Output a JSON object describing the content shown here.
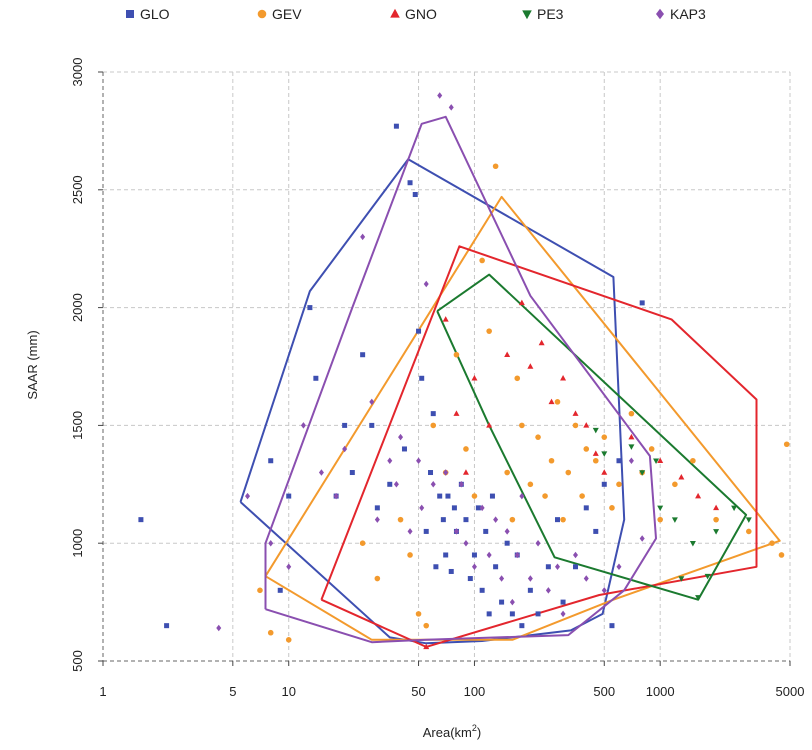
{
  "chart_data": {
    "type": "scatter",
    "title": "",
    "xlabel": "Area(km",
    "xlabel_sup": "2",
    "xlabel_close": ")",
    "ylabel": "SAAR (mm)",
    "xscale": "log",
    "xlim": [
      1,
      5000
    ],
    "ylim": [
      500,
      3000
    ],
    "x_ticks": [
      1,
      5,
      10,
      50,
      100,
      500,
      1000,
      5000
    ],
    "x_tick_labels": [
      "1",
      "5",
      "10",
      "50",
      "100",
      "500",
      "1000",
      "5000"
    ],
    "y_ticks": [
      500,
      1000,
      1500,
      2000,
      2500,
      3000
    ],
    "y_tick_labels": [
      "500",
      "1000",
      "1500",
      "2000",
      "2500",
      "3000"
    ],
    "grid": true,
    "legend_position": "top",
    "series": [
      {
        "name": "GLO",
        "color": "#3e4fb1",
        "marker": "square",
        "points": [
          [
            1.6,
            1100
          ],
          [
            2.2,
            650
          ],
          [
            8,
            1350
          ],
          [
            9,
            800
          ],
          [
            10,
            1200
          ],
          [
            13,
            2000
          ],
          [
            14,
            1700
          ],
          [
            18,
            1200
          ],
          [
            20,
            1500
          ],
          [
            22,
            1300
          ],
          [
            25,
            1800
          ],
          [
            28,
            1500
          ],
          [
            30,
            1150
          ],
          [
            35,
            1250
          ],
          [
            38,
            2770
          ],
          [
            42,
            1400
          ],
          [
            45,
            2530
          ],
          [
            48,
            2480
          ],
          [
            50,
            1900
          ],
          [
            52,
            1700
          ],
          [
            55,
            1050
          ],
          [
            58,
            1300
          ],
          [
            60,
            1550
          ],
          [
            62,
            900
          ],
          [
            65,
            1200
          ],
          [
            68,
            1100
          ],
          [
            70,
            950
          ],
          [
            72,
            1200
          ],
          [
            75,
            880
          ],
          [
            78,
            1150
          ],
          [
            80,
            1050
          ],
          [
            85,
            1250
          ],
          [
            90,
            1100
          ],
          [
            95,
            850
          ],
          [
            100,
            950
          ],
          [
            105,
            1150
          ],
          [
            110,
            800
          ],
          [
            115,
            1050
          ],
          [
            120,
            700
          ],
          [
            125,
            1200
          ],
          [
            130,
            900
          ],
          [
            140,
            750
          ],
          [
            150,
            1000
          ],
          [
            160,
            700
          ],
          [
            170,
            950
          ],
          [
            180,
            650
          ],
          [
            200,
            800
          ],
          [
            220,
            700
          ],
          [
            250,
            900
          ],
          [
            280,
            1100
          ],
          [
            300,
            750
          ],
          [
            350,
            900
          ],
          [
            400,
            1150
          ],
          [
            450,
            1050
          ],
          [
            500,
            1250
          ],
          [
            550,
            650
          ],
          [
            600,
            1350
          ],
          [
            800,
            2020
          ]
        ]
      },
      {
        "name": "GEV",
        "color": "#f39a2d",
        "marker": "circle",
        "points": [
          [
            7,
            800
          ],
          [
            8,
            620
          ],
          [
            10,
            590
          ],
          [
            25,
            1000
          ],
          [
            30,
            850
          ],
          [
            40,
            1100
          ],
          [
            45,
            950
          ],
          [
            50,
            700
          ],
          [
            55,
            650
          ],
          [
            60,
            1500
          ],
          [
            70,
            1300
          ],
          [
            80,
            1800
          ],
          [
            90,
            1400
          ],
          [
            100,
            1200
          ],
          [
            110,
            2200
          ],
          [
            120,
            1900
          ],
          [
            130,
            2600
          ],
          [
            150,
            1300
          ],
          [
            160,
            1100
          ],
          [
            170,
            1700
          ],
          [
            180,
            1500
          ],
          [
            200,
            1250
          ],
          [
            220,
            1450
          ],
          [
            240,
            1200
          ],
          [
            260,
            1350
          ],
          [
            280,
            1600
          ],
          [
            300,
            1100
          ],
          [
            320,
            1300
          ],
          [
            350,
            1500
          ],
          [
            380,
            1200
          ],
          [
            400,
            1400
          ],
          [
            450,
            1350
          ],
          [
            500,
            1450
          ],
          [
            550,
            1150
          ],
          [
            600,
            1250
          ],
          [
            700,
            1550
          ],
          [
            800,
            1300
          ],
          [
            900,
            1400
          ],
          [
            1000,
            1100
          ],
          [
            1200,
            1250
          ],
          [
            1500,
            1350
          ],
          [
            2000,
            1100
          ],
          [
            3000,
            1050
          ],
          [
            4000,
            1000
          ],
          [
            4500,
            950
          ],
          [
            4800,
            1420
          ]
        ]
      },
      {
        "name": "GNO",
        "color": "#e3262d",
        "marker": "triangle-up",
        "points": [
          [
            55,
            560
          ],
          [
            70,
            1950
          ],
          [
            80,
            1550
          ],
          [
            90,
            1300
          ],
          [
            100,
            1700
          ],
          [
            120,
            1500
          ],
          [
            150,
            1800
          ],
          [
            180,
            2020
          ],
          [
            200,
            1750
          ],
          [
            230,
            1850
          ],
          [
            260,
            1600
          ],
          [
            300,
            1700
          ],
          [
            350,
            1550
          ],
          [
            400,
            1500
          ],
          [
            450,
            1380
          ],
          [
            500,
            1300
          ],
          [
            700,
            1450
          ],
          [
            1000,
            1350
          ],
          [
            1300,
            1280
          ],
          [
            1600,
            1200
          ],
          [
            2000,
            1150
          ]
        ]
      },
      {
        "name": "PE3",
        "color": "#1b7a2f",
        "marker": "triangle-down",
        "points": [
          [
            450,
            1480
          ],
          [
            500,
            1380
          ],
          [
            700,
            1410
          ],
          [
            800,
            1300
          ],
          [
            950,
            1350
          ],
          [
            1000,
            1150
          ],
          [
            1200,
            1100
          ],
          [
            1500,
            1000
          ],
          [
            1800,
            860
          ],
          [
            2000,
            1050
          ],
          [
            2500,
            1150
          ],
          [
            3000,
            1100
          ],
          [
            1300,
            850
          ],
          [
            1600,
            770
          ]
        ]
      },
      {
        "name": "KAP3",
        "color": "#8a4fb0",
        "marker": "diamond",
        "points": [
          [
            4.2,
            640
          ],
          [
            6,
            1200
          ],
          [
            8,
            1000
          ],
          [
            10,
            900
          ],
          [
            12,
            1500
          ],
          [
            15,
            1300
          ],
          [
            18,
            1200
          ],
          [
            20,
            1400
          ],
          [
            25,
            2300
          ],
          [
            28,
            1600
          ],
          [
            30,
            1100
          ],
          [
            35,
            1350
          ],
          [
            38,
            1250
          ],
          [
            40,
            1450
          ],
          [
            45,
            1050
          ],
          [
            50,
            1350
          ],
          [
            52,
            1150
          ],
          [
            55,
            2100
          ],
          [
            60,
            1250
          ],
          [
            65,
            2900
          ],
          [
            70,
            1300
          ],
          [
            75,
            2850
          ],
          [
            80,
            1050
          ],
          [
            85,
            1250
          ],
          [
            90,
            1000
          ],
          [
            100,
            900
          ],
          [
            110,
            1150
          ],
          [
            120,
            950
          ],
          [
            130,
            1100
          ],
          [
            140,
            850
          ],
          [
            150,
            1050
          ],
          [
            160,
            750
          ],
          [
            170,
            950
          ],
          [
            180,
            1200
          ],
          [
            200,
            850
          ],
          [
            220,
            1000
          ],
          [
            250,
            800
          ],
          [
            280,
            900
          ],
          [
            300,
            700
          ],
          [
            350,
            950
          ],
          [
            400,
            850
          ],
          [
            500,
            800
          ],
          [
            600,
            900
          ],
          [
            700,
            1350
          ],
          [
            800,
            1020
          ]
        ]
      }
    ],
    "hulls": [
      {
        "name": "GLO",
        "color": "#3e4fb1",
        "points": [
          [
            5.5,
            1175
          ],
          [
            13,
            2070
          ],
          [
            44,
            2630
          ],
          [
            560,
            2130
          ],
          [
            640,
            1100
          ],
          [
            490,
            700
          ],
          [
            330,
            630
          ],
          [
            110,
            585
          ],
          [
            55,
            575
          ],
          [
            35,
            600
          ],
          [
            5.5,
            1175
          ]
        ]
      },
      {
        "name": "GEV",
        "color": "#f39a2d",
        "points": [
          [
            7.5,
            860
          ],
          [
            140,
            2470
          ],
          [
            4400,
            1010
          ],
          [
            560,
            760
          ],
          [
            160,
            590
          ],
          [
            28,
            590
          ],
          [
            7.5,
            860
          ]
        ]
      },
      {
        "name": "GNO",
        "color": "#e3262d",
        "points": [
          [
            15,
            760
          ],
          [
            83,
            2260
          ],
          [
            1150,
            1950
          ],
          [
            3300,
            1610
          ],
          [
            3300,
            900
          ],
          [
            470,
            780
          ],
          [
            55,
            560
          ],
          [
            15,
            760
          ]
        ]
      },
      {
        "name": "PE3",
        "color": "#1b7a2f",
        "points": [
          [
            63,
            1985
          ],
          [
            120,
            2140
          ],
          [
            2900,
            1120
          ],
          [
            1600,
            760
          ],
          [
            270,
            940
          ],
          [
            120,
            1500
          ],
          [
            63,
            1985
          ]
        ]
      },
      {
        "name": "KAP3",
        "color": "#8a4fb0",
        "points": [
          [
            7.5,
            720
          ],
          [
            7.5,
            1000
          ],
          [
            22,
            2000
          ],
          [
            52,
            2780
          ],
          [
            70,
            2810
          ],
          [
            200,
            2050
          ],
          [
            880,
            1370
          ],
          [
            950,
            1020
          ],
          [
            640,
            800
          ],
          [
            320,
            610
          ],
          [
            55,
            590
          ],
          [
            28,
            580
          ],
          [
            7.5,
            720
          ]
        ]
      }
    ]
  }
}
